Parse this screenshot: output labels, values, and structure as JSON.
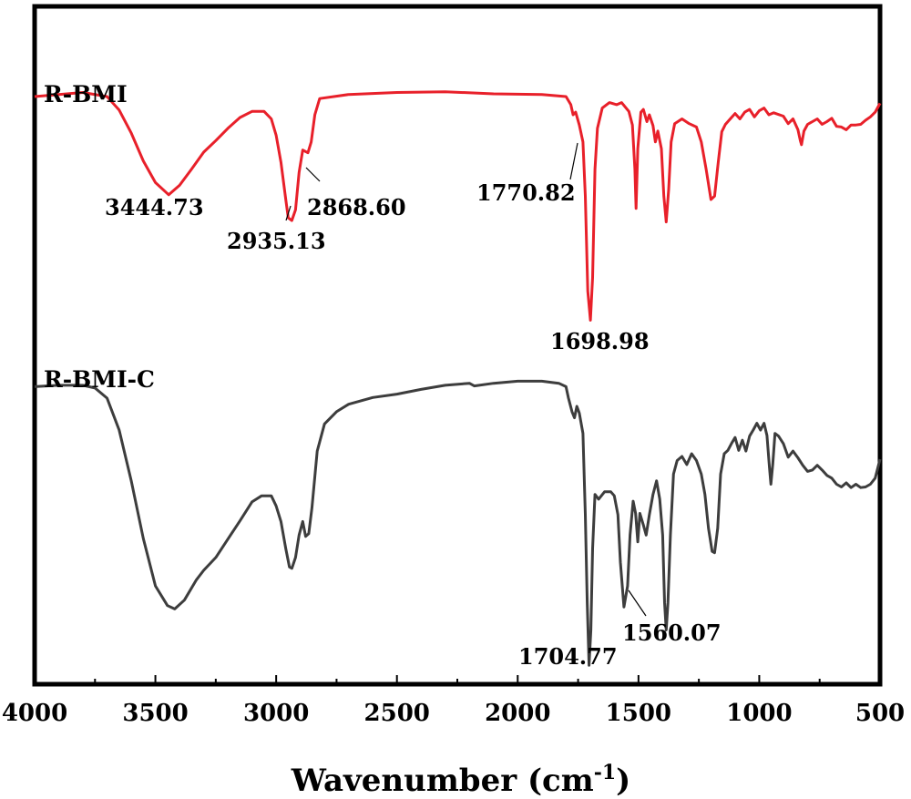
{
  "chart_data": {
    "type": "line",
    "title": "",
    "xlabel": "Wavenumber (cm-1)",
    "xlabel_main": "Wavenumber (cm",
    "xlabel_sup": "-1",
    "xlabel_close": ")",
    "ylabel": "",
    "xlim": [
      4000,
      500
    ],
    "x_ticks": [
      4000,
      3500,
      3000,
      2500,
      2000,
      1500,
      1000,
      500
    ],
    "x_tick_labels": [
      "4000",
      "3500",
      "3000",
      "2500",
      "2000",
      "1500",
      "1000",
      "500"
    ],
    "y_ticks_shown": false,
    "y_units": "relative transmittance (offset, 0 = top of plot, 100 = bottom of plot)",
    "ylim": [
      0,
      100
    ],
    "series": [
      {
        "name": "R-BMI",
        "color": "#e8202a",
        "points": [
          [
            4000,
            13.3
          ],
          [
            3900,
            13.0
          ],
          [
            3800,
            12.7
          ],
          [
            3700,
            13.3
          ],
          [
            3650,
            15.3
          ],
          [
            3600,
            18.7
          ],
          [
            3550,
            22.8
          ],
          [
            3500,
            26.0
          ],
          [
            3444.73,
            27.8
          ],
          [
            3400,
            26.4
          ],
          [
            3350,
            24.0
          ],
          [
            3300,
            21.5
          ],
          [
            3250,
            19.8
          ],
          [
            3200,
            18.0
          ],
          [
            3150,
            16.4
          ],
          [
            3100,
            15.5
          ],
          [
            3050,
            15.5
          ],
          [
            3020,
            16.6
          ],
          [
            3000,
            19.0
          ],
          [
            2980,
            23.0
          ],
          [
            2960,
            28.5
          ],
          [
            2950,
            31.2
          ],
          [
            2935.13,
            31.6
          ],
          [
            2920,
            30.0
          ],
          [
            2905,
            24.5
          ],
          [
            2890,
            21.2
          ],
          [
            2868.6,
            21.6
          ],
          [
            2855,
            20.0
          ],
          [
            2840,
            16.0
          ],
          [
            2820,
            13.6
          ],
          [
            2700,
            13.0
          ],
          [
            2500,
            12.7
          ],
          [
            2300,
            12.6
          ],
          [
            2100,
            12.9
          ],
          [
            1900,
            13.0
          ],
          [
            1800,
            13.3
          ],
          [
            1780,
            14.5
          ],
          [
            1770.82,
            16.0
          ],
          [
            1760,
            15.6
          ],
          [
            1745,
            17.5
          ],
          [
            1730,
            20.0
          ],
          [
            1720,
            28.0
          ],
          [
            1710,
            42.0
          ],
          [
            1698.98,
            46.3
          ],
          [
            1690,
            40.0
          ],
          [
            1680,
            24.0
          ],
          [
            1670,
            18.0
          ],
          [
            1650,
            15.0
          ],
          [
            1620,
            14.2
          ],
          [
            1590,
            14.5
          ],
          [
            1570,
            14.2
          ],
          [
            1540,
            15.5
          ],
          [
            1525,
            17.5
          ],
          [
            1515,
            24.0
          ],
          [
            1510,
            29.8
          ],
          [
            1503,
            21.0
          ],
          [
            1490,
            15.6
          ],
          [
            1480,
            15.2
          ],
          [
            1465,
            17.0
          ],
          [
            1455,
            16.0
          ],
          [
            1440,
            17.6
          ],
          [
            1430,
            20.0
          ],
          [
            1420,
            18.4
          ],
          [
            1405,
            21.0
          ],
          [
            1395,
            28.0
          ],
          [
            1385,
            31.8
          ],
          [
            1375,
            27.0
          ],
          [
            1365,
            20.0
          ],
          [
            1350,
            17.3
          ],
          [
            1320,
            16.6
          ],
          [
            1290,
            17.3
          ],
          [
            1260,
            17.8
          ],
          [
            1240,
            20.0
          ],
          [
            1220,
            24.0
          ],
          [
            1200,
            28.5
          ],
          [
            1185,
            28.0
          ],
          [
            1170,
            23.0
          ],
          [
            1155,
            18.5
          ],
          [
            1140,
            17.4
          ],
          [
            1120,
            16.6
          ],
          [
            1100,
            15.8
          ],
          [
            1080,
            16.6
          ],
          [
            1060,
            15.6
          ],
          [
            1040,
            15.2
          ],
          [
            1020,
            16.3
          ],
          [
            1000,
            15.4
          ],
          [
            980,
            15.0
          ],
          [
            960,
            16.0
          ],
          [
            940,
            15.7
          ],
          [
            900,
            16.2
          ],
          [
            880,
            17.3
          ],
          [
            860,
            16.6
          ],
          [
            840,
            18.2
          ],
          [
            830,
            19.8
          ],
          [
            825,
            20.4
          ],
          [
            815,
            18.4
          ],
          [
            800,
            17.4
          ],
          [
            780,
            17.0
          ],
          [
            760,
            16.6
          ],
          [
            740,
            17.4
          ],
          [
            720,
            17.0
          ],
          [
            700,
            16.5
          ],
          [
            680,
            17.7
          ],
          [
            660,
            17.8
          ],
          [
            640,
            18.2
          ],
          [
            620,
            17.5
          ],
          [
            600,
            17.5
          ],
          [
            580,
            17.4
          ],
          [
            560,
            16.8
          ],
          [
            540,
            16.3
          ],
          [
            520,
            15.6
          ],
          [
            500,
            14.3
          ]
        ]
      },
      {
        "name": "R-BMI-C",
        "color": "#3d3d3d",
        "points": [
          [
            4000,
            56.1
          ],
          [
            3900,
            55.9
          ],
          [
            3800,
            55.9
          ],
          [
            3750,
            56.3
          ],
          [
            3700,
            57.8
          ],
          [
            3650,
            62.5
          ],
          [
            3600,
            70.0
          ],
          [
            3550,
            78.5
          ],
          [
            3500,
            85.5
          ],
          [
            3450,
            88.4
          ],
          [
            3420,
            88.9
          ],
          [
            3380,
            87.6
          ],
          [
            3330,
            84.6
          ],
          [
            3300,
            83.2
          ],
          [
            3250,
            81.3
          ],
          [
            3200,
            78.6
          ],
          [
            3150,
            75.9
          ],
          [
            3100,
            73.1
          ],
          [
            3060,
            72.2
          ],
          [
            3020,
            72.2
          ],
          [
            3000,
            73.7
          ],
          [
            2980,
            76.0
          ],
          [
            2960,
            80.0
          ],
          [
            2945,
            82.7
          ],
          [
            2935,
            82.9
          ],
          [
            2920,
            81.3
          ],
          [
            2905,
            78.0
          ],
          [
            2890,
            76.0
          ],
          [
            2878,
            78.2
          ],
          [
            2865,
            77.8
          ],
          [
            2852,
            74.0
          ],
          [
            2830,
            65.6
          ],
          [
            2800,
            61.6
          ],
          [
            2750,
            59.8
          ],
          [
            2700,
            58.7
          ],
          [
            2600,
            57.7
          ],
          [
            2500,
            57.2
          ],
          [
            2400,
            56.5
          ],
          [
            2300,
            55.9
          ],
          [
            2200,
            55.6
          ],
          [
            2180,
            56.0
          ],
          [
            2100,
            55.6
          ],
          [
            2000,
            55.3
          ],
          [
            1900,
            55.3
          ],
          [
            1830,
            55.6
          ],
          [
            1800,
            56.1
          ],
          [
            1790,
            57.8
          ],
          [
            1775,
            59.8
          ],
          [
            1765,
            60.7
          ],
          [
            1755,
            59.0
          ],
          [
            1745,
            60.0
          ],
          [
            1730,
            63.0
          ],
          [
            1720,
            75.0
          ],
          [
            1712,
            88.0
          ],
          [
            1704.77,
            97.2
          ],
          [
            1697,
            92.0
          ],
          [
            1690,
            80.0
          ],
          [
            1680,
            72.0
          ],
          [
            1665,
            72.7
          ],
          [
            1640,
            71.6
          ],
          [
            1615,
            71.6
          ],
          [
            1600,
            72.2
          ],
          [
            1585,
            75.0
          ],
          [
            1575,
            82.0
          ],
          [
            1560.07,
            88.6
          ],
          [
            1545,
            85.5
          ],
          [
            1535,
            78.0
          ],
          [
            1522,
            73.0
          ],
          [
            1512,
            74.8
          ],
          [
            1503,
            79.0
          ],
          [
            1494,
            74.8
          ],
          [
            1480,
            76.5
          ],
          [
            1468,
            78.0
          ],
          [
            1455,
            75.0
          ],
          [
            1440,
            72.0
          ],
          [
            1425,
            70.0
          ],
          [
            1412,
            72.7
          ],
          [
            1400,
            78.0
          ],
          [
            1392,
            88.0
          ],
          [
            1385,
            92.0
          ],
          [
            1378,
            88.0
          ],
          [
            1368,
            78.0
          ],
          [
            1355,
            69.0
          ],
          [
            1340,
            67.0
          ],
          [
            1320,
            66.4
          ],
          [
            1300,
            67.6
          ],
          [
            1280,
            66.0
          ],
          [
            1260,
            67.0
          ],
          [
            1240,
            69.0
          ],
          [
            1225,
            72.0
          ],
          [
            1210,
            77.0
          ],
          [
            1195,
            80.4
          ],
          [
            1185,
            80.6
          ],
          [
            1172,
            77.0
          ],
          [
            1160,
            69.0
          ],
          [
            1145,
            66.0
          ],
          [
            1130,
            65.5
          ],
          [
            1115,
            64.5
          ],
          [
            1100,
            63.6
          ],
          [
            1085,
            65.5
          ],
          [
            1070,
            64.0
          ],
          [
            1055,
            65.6
          ],
          [
            1040,
            63.4
          ],
          [
            1025,
            62.5
          ],
          [
            1010,
            61.5
          ],
          [
            995,
            62.5
          ],
          [
            980,
            61.5
          ],
          [
            968,
            63.3
          ],
          [
            958,
            68.0
          ],
          [
            952,
            70.5
          ],
          [
            944,
            67.5
          ],
          [
            935,
            63.0
          ],
          [
            920,
            63.4
          ],
          [
            900,
            64.5
          ],
          [
            880,
            66.5
          ],
          [
            860,
            65.6
          ],
          [
            840,
            66.6
          ],
          [
            820,
            67.7
          ],
          [
            800,
            68.6
          ],
          [
            780,
            68.4
          ],
          [
            760,
            67.7
          ],
          [
            740,
            68.4
          ],
          [
            720,
            69.2
          ],
          [
            700,
            69.6
          ],
          [
            680,
            70.5
          ],
          [
            660,
            70.9
          ],
          [
            640,
            70.3
          ],
          [
            620,
            71.0
          ],
          [
            600,
            70.5
          ],
          [
            580,
            71.0
          ],
          [
            560,
            70.9
          ],
          [
            540,
            70.5
          ],
          [
            520,
            69.6
          ],
          [
            500,
            66.8
          ]
        ]
      }
    ],
    "annotations": [
      {
        "text": "3444.73",
        "x": 3444.73,
        "series": "R-BMI"
      },
      {
        "text": "2935.13",
        "x": 2935.13,
        "series": "R-BMI"
      },
      {
        "text": "2868.60",
        "x": 2868.6,
        "series": "R-BMI"
      },
      {
        "text": "1770.82",
        "x": 1770.82,
        "series": "R-BMI"
      },
      {
        "text": "1698.98",
        "x": 1698.98,
        "series": "R-BMI"
      },
      {
        "text": "1704.77",
        "x": 1704.77,
        "series": "R-BMI-C"
      },
      {
        "text": "1560.07",
        "x": 1560.07,
        "series": "R-BMI-C"
      }
    ]
  }
}
